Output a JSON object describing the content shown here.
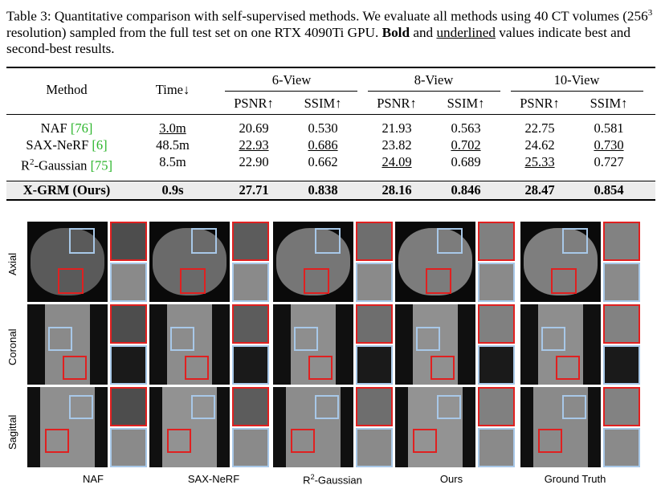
{
  "caption": {
    "part1": "Table 3: Quantitative comparison with self-supervised methods. We evaluate all methods using 40 CT volumes (256",
    "sup": "3",
    "part2": " resolution) sampled from the full test set on one RTX 4090Ti GPU. ",
    "bold": "Bold",
    "part3": " and ",
    "under": "underlined",
    "part4": " values indicate best and second-best results."
  },
  "table": {
    "headers": {
      "method": "Method",
      "time": "Time↓",
      "groups": [
        "6-View",
        "8-View",
        "10-View"
      ],
      "psnr": "PSNR↑",
      "ssim": "SSIM↑"
    },
    "rows": [
      {
        "name": "NAF ",
        "cite": "[76]",
        "time": "3.0m",
        "vals": [
          "20.69",
          "0.530",
          "21.93",
          "0.563",
          "22.75",
          "0.581"
        ]
      },
      {
        "name": "SAX-NeRF ",
        "cite": "[6]",
        "time": "48.5m",
        "vals": [
          "22.93",
          "0.686",
          "23.82",
          "0.702",
          "24.62",
          "0.730"
        ]
      },
      {
        "name": "R",
        "sup": "2",
        "name2": "-Gaussian ",
        "cite": "[75]",
        "time": "8.5m",
        "vals": [
          "22.90",
          "0.662",
          "24.09",
          "0.689",
          "25.33",
          "0.727"
        ]
      },
      {
        "name": "X-GRM (Ours)",
        "time": "0.9s",
        "vals": [
          "27.71",
          "0.838",
          "28.16",
          "0.846",
          "28.47",
          "0.854"
        ]
      }
    ]
  },
  "figure": {
    "row_labels": [
      "Axial",
      "Coronal",
      "Sagittal"
    ],
    "col_labels": [
      "NAF",
      "SAX-NeRF",
      "R2-Gaussian",
      "Ours",
      "Ground Truth"
    ],
    "col_label_parts": [
      {
        "a": "NAF"
      },
      {
        "a": "SAX-NeRF"
      },
      {
        "a": "R",
        "sup": "2",
        "b": "-Gaussian"
      },
      {
        "a": "Ours"
      },
      {
        "a": "Ground Truth"
      }
    ]
  }
}
